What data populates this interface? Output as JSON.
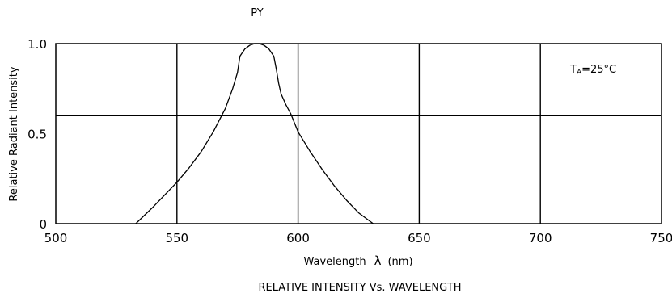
{
  "chart_data": {
    "type": "line",
    "title": "PY",
    "caption": "RELATIVE INTENSITY Vs. WAVELENGTH",
    "xlabel": "Wavelength",
    "xlabel_symbol": "λ",
    "xlabel_unit": "(nm)",
    "ylabel": "Relative Radiant Intensity",
    "annotation": {
      "base": "T",
      "sub": "A",
      "rest": "=25°C"
    },
    "xlim": [
      500,
      750
    ],
    "ylim": [
      0,
      1.0
    ],
    "x_ticks": [
      500,
      550,
      600,
      650,
      700,
      750
    ],
    "x_tick_labels": [
      "500",
      "550",
      "600",
      "650",
      "700",
      "750"
    ],
    "y_ticks": [
      0,
      0.5,
      1.0
    ],
    "y_tick_labels": [
      "0",
      "0.5",
      "1.0"
    ],
    "vertical_gridlines": [
      550,
      600,
      650,
      700
    ],
    "horizontal_gridline": 0.5,
    "grid": true,
    "colors": {
      "line": "#000000",
      "background": "#ffffff"
    },
    "series": [
      {
        "x": [
          533,
          540,
          545,
          550,
          555,
          560,
          565,
          570,
          573,
          575,
          576,
          578,
          580,
          582,
          584,
          586,
          588,
          590,
          591,
          592,
          593,
          595,
          597,
          600,
          605,
          610,
          615,
          620,
          625,
          631
        ],
        "y": [
          0,
          0.09,
          0.16,
          0.23,
          0.31,
          0.4,
          0.51,
          0.64,
          0.75,
          0.84,
          0.93,
          0.97,
          0.99,
          1.0,
          1.0,
          0.99,
          0.97,
          0.93,
          0.86,
          0.78,
          0.72,
          0.66,
          0.61,
          0.51,
          0.4,
          0.3,
          0.21,
          0.13,
          0.06,
          0
        ]
      }
    ]
  }
}
